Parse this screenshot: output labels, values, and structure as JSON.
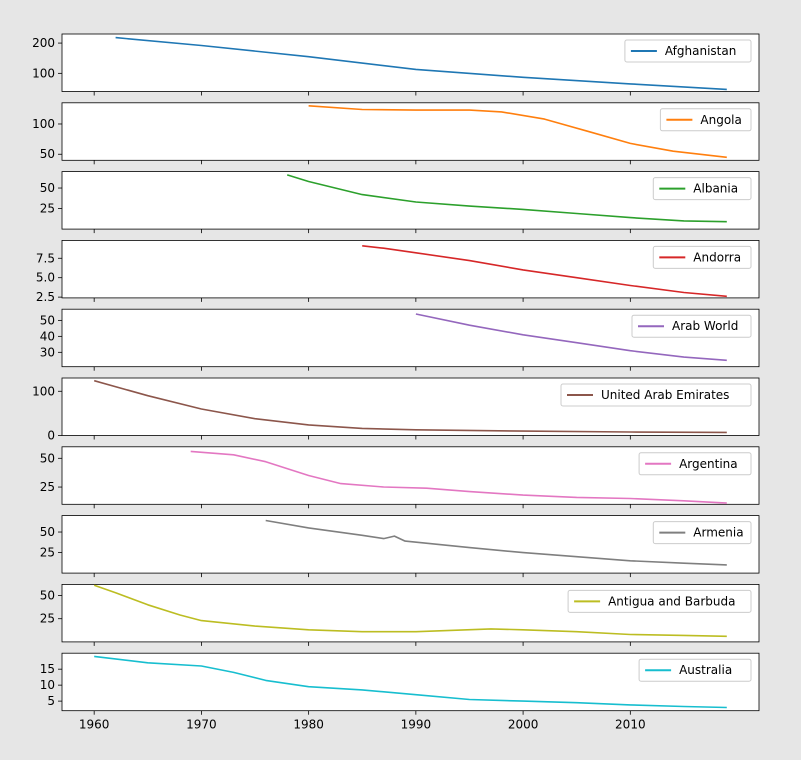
{
  "chart_data": {
    "type": "line",
    "layout": "stacked-subplots-shared-x",
    "legend_position": "upper right",
    "grid": false,
    "xlim": [
      1957,
      2022
    ],
    "xticks": [
      1960,
      1970,
      1980,
      1990,
      2000,
      2010
    ],
    "panels": [
      {
        "name": "Afghanistan",
        "color": "#1f77b4",
        "ylim": [
          40,
          230
        ],
        "yticks": [
          {
            "v": 100,
            "label": "100"
          },
          {
            "v": 200,
            "label": "200"
          }
        ],
        "x": [
          1962,
          1970,
          1980,
          1990,
          2000,
          2010,
          2019
        ],
        "y": [
          218,
          192,
          155,
          113,
          87,
          65,
          47
        ]
      },
      {
        "name": "Angola",
        "color": "#ff7f0e",
        "ylim": [
          40,
          135
        ],
        "yticks": [
          {
            "v": 50,
            "label": "50"
          },
          {
            "v": 100,
            "label": "100"
          }
        ],
        "x": [
          1980,
          1985,
          1990,
          1995,
          1998,
          2002,
          2006,
          2010,
          2014,
          2019
        ],
        "y": [
          130,
          124,
          123,
          123,
          120,
          108,
          88,
          68,
          55,
          45
        ]
      },
      {
        "name": "Albania",
        "color": "#2ca02c",
        "ylim": [
          0,
          70
        ],
        "yticks": [
          {
            "v": 25,
            "label": "25"
          },
          {
            "v": 50,
            "label": "50"
          }
        ],
        "x": [
          1978,
          1980,
          1985,
          1990,
          1995,
          2000,
          2005,
          2010,
          2015,
          2019
        ],
        "y": [
          66,
          58,
          42,
          33,
          28,
          24,
          19,
          14,
          10,
          9
        ]
      },
      {
        "name": "Andorra",
        "color": "#d62728",
        "ylim": [
          2.4,
          9.8
        ],
        "yticks": [
          {
            "v": 2.5,
            "label": "2.5"
          },
          {
            "v": 5.0,
            "label": "5.0"
          },
          {
            "v": 7.5,
            "label": "7.5"
          }
        ],
        "x": [
          1985,
          1987,
          1990,
          1995,
          2000,
          2005,
          2010,
          2015,
          2019
        ],
        "y": [
          9.1,
          8.8,
          8.2,
          7.2,
          6.0,
          5.0,
          4.0,
          3.1,
          2.6
        ]
      },
      {
        "name": "Arab World",
        "color": "#9467bd",
        "ylim": [
          21,
          57
        ],
        "yticks": [
          {
            "v": 30,
            "label": "30"
          },
          {
            "v": 40,
            "label": "40"
          },
          {
            "v": 50,
            "label": "50"
          }
        ],
        "x": [
          1990,
          1995,
          2000,
          2005,
          2010,
          2015,
          2019
        ],
        "y": [
          54,
          47,
          41,
          36,
          31,
          27,
          25
        ]
      },
      {
        "name": "United Arab Emirates",
        "color": "#8c564b",
        "ylim": [
          0,
          130
        ],
        "yticks": [
          {
            "v": 0,
            "label": "0"
          },
          {
            "v": 100,
            "label": "100"
          }
        ],
        "x": [
          1960,
          1965,
          1970,
          1975,
          1980,
          1985,
          1990,
          2000,
          2010,
          2019
        ],
        "y": [
          124,
          90,
          60,
          38,
          24,
          16,
          13,
          10,
          8,
          7
        ]
      },
      {
        "name": "Argentina",
        "color": "#e377c2",
        "ylim": [
          10,
          60
        ],
        "yticks": [
          {
            "v": 25,
            "label": "25"
          },
          {
            "v": 50,
            "label": "50"
          }
        ],
        "x": [
          1969,
          1973,
          1976,
          1980,
          1983,
          1987,
          1991,
          1995,
          2000,
          2005,
          2010,
          2015,
          2019
        ],
        "y": [
          56,
          53,
          47,
          35,
          28,
          25,
          24,
          21,
          18,
          16,
          15,
          13,
          11
        ]
      },
      {
        "name": "Armenia",
        "color": "#7f7f7f",
        "ylim": [
          0,
          70
        ],
        "yticks": [
          {
            "v": 25,
            "label": "25"
          },
          {
            "v": 50,
            "label": "50"
          }
        ],
        "x": [
          1976,
          1980,
          1985,
          1987,
          1988,
          1989,
          1995,
          2000,
          2005,
          2010,
          2015,
          2019
        ],
        "y": [
          64,
          55,
          46,
          42,
          45,
          39,
          31,
          25,
          20,
          15,
          12,
          10
        ]
      },
      {
        "name": "Antigua and Barbuda",
        "color": "#bcbd22",
        "ylim": [
          0,
          62
        ],
        "yticks": [
          {
            "v": 25,
            "label": "25"
          },
          {
            "v": 50,
            "label": "50"
          }
        ],
        "x": [
          1960,
          1962,
          1965,
          1968,
          1970,
          1975,
          1980,
          1985,
          1990,
          1997,
          2000,
          2005,
          2010,
          2015,
          2019
        ],
        "y": [
          61,
          53,
          40,
          29,
          23,
          17,
          13,
          11,
          11,
          14,
          13,
          11,
          8,
          7,
          6
        ]
      },
      {
        "name": "Australia",
        "color": "#17becf",
        "ylim": [
          2,
          20
        ],
        "yticks": [
          {
            "v": 5,
            "label": "5"
          },
          {
            "v": 10,
            "label": "10"
          },
          {
            "v": 15,
            "label": "15"
          }
        ],
        "x": [
          1960,
          1965,
          1970,
          1973,
          1976,
          1980,
          1985,
          1990,
          1995,
          2000,
          2005,
          2010,
          2015,
          2019
        ],
        "y": [
          19,
          17,
          16,
          14,
          11.5,
          9.5,
          8.5,
          7,
          5.5,
          5,
          4.5,
          3.8,
          3.3,
          3
        ]
      }
    ]
  }
}
